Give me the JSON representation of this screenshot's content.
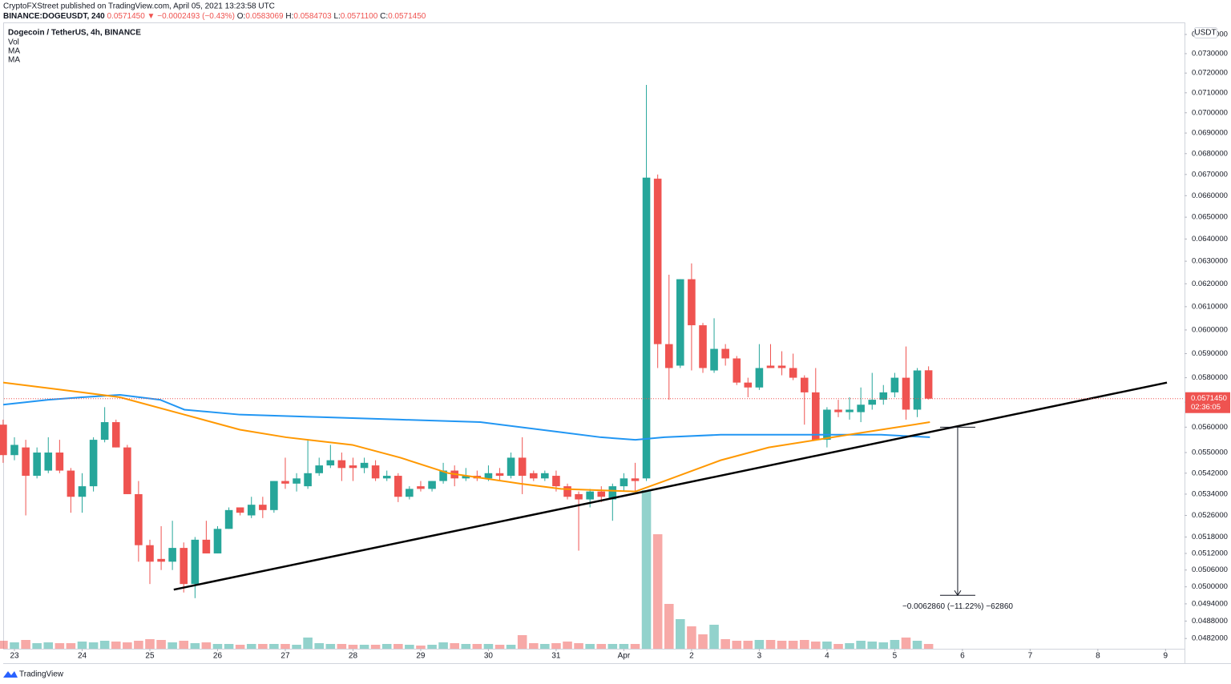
{
  "header": {
    "publisher": "CryptoFXStreet published on TradingView.com, April 05, 2021 13:23:58 UTC",
    "symbol": "BINANCE:DOGEUSDT, 240",
    "price": "0.0571450",
    "change": "▼ −0.0002493 (−0.43%)",
    "ohlc": [
      {
        "key": "O:",
        "value": "0.0583069"
      },
      {
        "key": "H:",
        "value": "0.0584703"
      },
      {
        "key": "L:",
        "value": "0.0571100"
      },
      {
        "key": "C:",
        "value": "0.0571450"
      }
    ]
  },
  "chart_data": {
    "type": "candlestick",
    "title": "Dogecoin / TetherUS, 4h, BINANCE",
    "indicators": [
      "Vol",
      "MA",
      "MA"
    ],
    "currency": "USDT",
    "log_scale": true,
    "grid": false,
    "xlim": [
      -0.154,
      17.28
    ],
    "xticks": [
      {
        "value": 0,
        "label": "23"
      },
      {
        "value": 1,
        "label": "24"
      },
      {
        "value": 2,
        "label": "25"
      },
      {
        "value": 3,
        "label": "26"
      },
      {
        "value": 4,
        "label": "27"
      },
      {
        "value": 5,
        "label": "28"
      },
      {
        "value": 6,
        "label": "29"
      },
      {
        "value": 7,
        "label": "30"
      },
      {
        "value": 8,
        "label": "31"
      },
      {
        "value": 9,
        "label": "Apr"
      },
      {
        "value": 10,
        "label": "2"
      },
      {
        "value": 11,
        "label": "3"
      },
      {
        "value": 12,
        "label": "4"
      },
      {
        "value": 13,
        "label": "5"
      },
      {
        "value": 14,
        "label": "6"
      },
      {
        "value": 15,
        "label": "7"
      },
      {
        "value": 16,
        "label": "8"
      },
      {
        "value": 17,
        "label": "9"
      }
    ],
    "ylim": [
      0.04785,
      0.07455
    ],
    "yticks": [
      {
        "value": 0.074,
        "label": "0.0740000"
      },
      {
        "value": 0.073,
        "label": "0.0730000"
      },
      {
        "value": 0.072,
        "label": "0.0720000"
      },
      {
        "value": 0.071,
        "label": "0.0710000"
      },
      {
        "value": 0.07,
        "label": "0.0700000"
      },
      {
        "value": 0.069,
        "label": "0.0690000"
      },
      {
        "value": 0.068,
        "label": "0.0680000"
      },
      {
        "value": 0.067,
        "label": "0.0670000"
      },
      {
        "value": 0.066,
        "label": "0.0660000"
      },
      {
        "value": 0.065,
        "label": "0.0650000"
      },
      {
        "value": 0.064,
        "label": "0.0640000"
      },
      {
        "value": 0.063,
        "label": "0.0630000"
      },
      {
        "value": 0.062,
        "label": "0.0620000"
      },
      {
        "value": 0.061,
        "label": "0.0610000"
      },
      {
        "value": 0.06,
        "label": "0.0600000"
      },
      {
        "value": 0.059,
        "label": "0.0590000"
      },
      {
        "value": 0.058,
        "label": "0.0580000"
      },
      {
        "value": 0.057,
        "label": "0.0570000"
      },
      {
        "value": 0.056,
        "label": "0.0560000"
      },
      {
        "value": 0.055,
        "label": "0.0550000"
      },
      {
        "value": 0.0542,
        "label": "0.0542000"
      },
      {
        "value": 0.0534,
        "label": "0.0534000"
      },
      {
        "value": 0.0526,
        "label": "0.0526000"
      },
      {
        "value": 0.0518,
        "label": "0.0518000"
      },
      {
        "value": 0.0512,
        "label": "0.0512000"
      },
      {
        "value": 0.0506,
        "label": "0.0506000"
      },
      {
        "value": 0.05,
        "label": "0.0500000"
      },
      {
        "value": 0.0494,
        "label": "0.0494000"
      },
      {
        "value": 0.0488,
        "label": "0.0488000"
      },
      {
        "value": 0.0482,
        "label": "0.0482000"
      }
    ],
    "x": [
      -0.167,
      0,
      0.167,
      0.333,
      0.5,
      0.667,
      0.833,
      1,
      1.167,
      1.333,
      1.5,
      1.667,
      1.833,
      2,
      2.167,
      2.333,
      2.5,
      2.667,
      2.833,
      3,
      3.167,
      3.333,
      3.5,
      3.667,
      3.833,
      4,
      4.167,
      4.333,
      4.5,
      4.667,
      4.833,
      5,
      5.167,
      5.333,
      5.5,
      5.667,
      5.833,
      6,
      6.167,
      6.333,
      6.5,
      6.667,
      6.833,
      7,
      7.167,
      7.333,
      7.5,
      7.667,
      7.833,
      8,
      8.167,
      8.333,
      8.5,
      8.667,
      8.833,
      9,
      9.167,
      9.333,
      9.5,
      9.667,
      9.833,
      10,
      10.167,
      10.333,
      10.5,
      10.667,
      10.833,
      11,
      11.167,
      11.333,
      11.5,
      11.667,
      11.833,
      12,
      12.167,
      12.333,
      12.5,
      12.667,
      12.833,
      13,
      13.167,
      13.333,
      13.5
    ],
    "open": [
      0.0561,
      0.0549,
      0.0552,
      0.0541,
      0.0543,
      0.055,
      0.0543,
      0.0533,
      0.0537,
      0.0555,
      0.0562,
      0.0552,
      0.0534,
      0.0515,
      0.051,
      0.0509,
      0.0514,
      0.0501,
      0.0517,
      0.0512,
      0.0521,
      0.0529,
      0.0526,
      0.053,
      0.0528,
      0.0539,
      0.0538,
      0.0537,
      0.0542,
      0.0545,
      0.0547,
      0.0545,
      0.0544,
      0.0545,
      0.054,
      0.0541,
      0.0533,
      0.0537,
      0.0536,
      0.0539,
      0.0543,
      0.054,
      0.0541,
      0.054,
      0.0542,
      0.0541,
      0.0548,
      0.0542,
      0.054,
      0.0541,
      0.0537,
      0.0534,
      0.0532,
      0.0535,
      0.0532,
      0.0537,
      0.054,
      0.054,
      0.0668,
      0.0594,
      0.0585,
      0.0622,
      0.0602,
      0.0583,
      0.0592,
      0.0588,
      0.0578,
      0.0576,
      0.0585,
      0.0585,
      0.0584,
      0.058,
      0.0574,
      0.0555,
      0.0567,
      0.0566,
      0.0566,
      0.0569,
      0.0571,
      0.0574,
      0.058,
      0.0567,
      0.0583069
    ],
    "high": [
      0.0563,
      0.0556,
      0.0555,
      0.0552,
      0.0556,
      0.0555,
      0.0544,
      0.0542,
      0.0556,
      0.0568,
      0.0563,
      0.0553,
      0.0539,
      0.0517,
      0.0522,
      0.0524,
      0.0516,
      0.0518,
      0.0524,
      0.0522,
      0.0529,
      0.0529,
      0.0533,
      0.0533,
      0.0539,
      0.0548,
      0.0542,
      0.0555,
      0.0548,
      0.0553,
      0.055,
      0.0548,
      0.0548,
      0.0547,
      0.0543,
      0.0542,
      0.0537,
      0.0539,
      0.0539,
      0.0546,
      0.0545,
      0.0544,
      0.0543,
      0.0545,
      0.0544,
      0.055,
      0.0556,
      0.0543,
      0.0543,
      0.0543,
      0.0538,
      0.0535,
      0.0536,
      0.0537,
      0.0538,
      0.0542,
      0.0546,
      0.0714,
      0.067,
      0.0624,
      0.0622,
      0.0629,
      0.0603,
      0.0605,
      0.0594,
      0.0589,
      0.058,
      0.0594,
      0.0594,
      0.0591,
      0.059,
      0.0581,
      0.0584,
      0.0568,
      0.0571,
      0.0572,
      0.0576,
      0.0582,
      0.0577,
      0.0582,
      0.0593,
      0.0584,
      0.0584703
    ],
    "low": [
      0.0546,
      0.0547,
      0.0526,
      0.054,
      0.0542,
      0.0542,
      0.0527,
      0.0527,
      0.0535,
      0.0554,
      0.0552,
      0.0534,
      0.0509,
      0.0501,
      0.0506,
      0.0506,
      0.0498,
      0.0496,
      0.0512,
      0.0512,
      0.0521,
      0.0526,
      0.0525,
      0.0525,
      0.0527,
      0.0536,
      0.0535,
      0.0536,
      0.0541,
      0.0544,
      0.0539,
      0.0539,
      0.0542,
      0.0539,
      0.0539,
      0.0531,
      0.0532,
      0.0535,
      0.0535,
      0.0538,
      0.0537,
      0.0539,
      0.0539,
      0.0539,
      0.0539,
      0.054,
      0.0534,
      0.0539,
      0.0539,
      0.0535,
      0.0532,
      0.0513,
      0.0529,
      0.0531,
      0.0524,
      0.0535,
      0.0535,
      0.0539,
      0.0584,
      0.0571,
      0.0584,
      0.0583,
      0.0582,
      0.0582,
      0.0585,
      0.0577,
      0.0572,
      0.0575,
      0.0584,
      0.0581,
      0.0579,
      0.0561,
      0.0555,
      0.0552,
      0.0564,
      0.0563,
      0.0562,
      0.0567,
      0.0569,
      0.0572,
      0.0563,
      0.0564,
      0.05711
    ],
    "close": [
      0.0549,
      0.0553,
      0.0541,
      0.055,
      0.055,
      0.0543,
      0.0533,
      0.0537,
      0.0555,
      0.0562,
      0.0552,
      0.0534,
      0.0515,
      0.0509,
      0.0509,
      0.0514,
      0.0501,
      0.0517,
      0.0512,
      0.0521,
      0.0528,
      0.0527,
      0.053,
      0.0528,
      0.0539,
      0.0538,
      0.054,
      0.0542,
      0.0545,
      0.0547,
      0.0544,
      0.0544,
      0.0546,
      0.054,
      0.0541,
      0.0533,
      0.0536,
      0.0536,
      0.0539,
      0.0543,
      0.054,
      0.0541,
      0.054,
      0.0542,
      0.0541,
      0.0548,
      0.0541,
      0.054,
      0.0542,
      0.0537,
      0.0533,
      0.0532,
      0.0535,
      0.0533,
      0.0537,
      0.054,
      0.0539,
      0.06685,
      0.0594,
      0.0584,
      0.0622,
      0.0602,
      0.0584,
      0.0592,
      0.0588,
      0.0578,
      0.0576,
      0.0584,
      0.0584,
      0.0584,
      0.058,
      0.0574,
      0.0555,
      0.0567,
      0.0566,
      0.0567,
      0.0569,
      0.0571,
      0.0574,
      0.058,
      0.0567,
      0.0583,
      0.057145
    ],
    "volume": [
      10,
      8,
      11,
      7,
      8,
      7,
      7,
      9,
      8,
      10,
      9,
      8,
      10,
      12,
      11,
      8,
      10,
      7,
      8,
      6,
      6,
      5,
      6,
      6,
      6,
      6,
      5,
      14,
      7,
      6,
      6,
      5,
      5,
      5,
      6,
      6,
      5,
      4,
      5,
      8,
      7,
      6,
      6,
      6,
      5,
      5,
      17,
      7,
      6,
      7,
      9,
      7,
      6,
      6,
      6,
      6,
      6,
      198,
      143,
      56,
      37,
      28,
      18,
      30,
      12,
      10,
      10,
      11,
      11,
      10,
      10,
      11,
      9,
      9,
      6,
      7,
      10,
      9,
      8,
      11,
      14,
      10,
      6
    ],
    "volume_lim": [
      0,
      200
    ],
    "up_color": "#26a69a",
    "down_color": "#ef5350",
    "series": [
      {
        "color": "#2196f3",
        "x": [
          -0.166,
          0.5,
          1.0,
          1.56,
          2.15,
          2.51,
          3.33,
          4.52,
          5.7,
          6.88,
          8.07,
          8.66,
          9.17,
          9.6,
          10.43,
          11.61,
          12.8,
          13.52
        ],
        "values": [
          0.0569,
          0.0571,
          0.0572,
          0.0573,
          0.0571,
          0.0567,
          0.0565,
          0.0564,
          0.0563,
          0.0562,
          0.0558,
          0.0556,
          0.0555,
          0.0556,
          0.0557,
          0.0557,
          0.0557,
          0.0556
        ]
      },
      {
        "color": "#ff9800",
        "x": [
          -0.166,
          1.0,
          1.56,
          2.51,
          3.33,
          4.01,
          4.99,
          5.7,
          6.41,
          7.47,
          8.07,
          9.17,
          9.6,
          10.43,
          11.14,
          11.85,
          12.32,
          12.8,
          13.52
        ],
        "values": [
          0.0578,
          0.0574,
          0.0572,
          0.0565,
          0.0559,
          0.0556,
          0.0553,
          0.0548,
          0.0542,
          0.0538,
          0.0536,
          0.0535,
          0.0539,
          0.0547,
          0.0552,
          0.0555,
          0.0557,
          0.0559,
          0.0562
        ]
      }
    ],
    "trendline": {
      "color": "#000000",
      "x": [
        2.353,
        17.02
      ],
      "values": [
        0.0499,
        0.0578
      ]
    },
    "last_price": {
      "value": 0.057145,
      "label": "0.0571450",
      "countdown": "02:36:05"
    },
    "measure": {
      "x": 13.93,
      "from": 0.056,
      "to": 0.0497,
      "label": "−0.0062860 (−11.22%) −62860"
    }
  },
  "footer": {
    "brand": "TradingView"
  }
}
